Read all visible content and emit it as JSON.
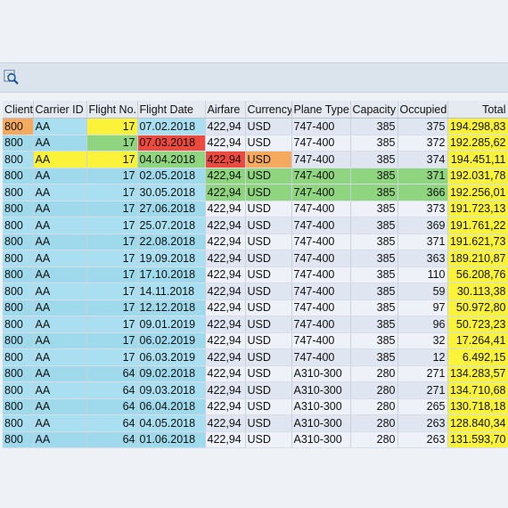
{
  "columns": [
    "Client",
    "Carrier ID",
    "Flight No.",
    "Flight Date",
    "Airfare",
    "Currency",
    "Plane Type",
    "Capacity",
    "Occupied",
    "Total"
  ],
  "rows": [
    {
      "client": "800",
      "carrier": "AA",
      "flight_no": "17",
      "date": "07.02.2018",
      "airfare": "422,94",
      "currency": "USD",
      "plane": "747-400",
      "capacity": "385",
      "occupied": "375",
      "total": "194.298,83"
    },
    {
      "client": "800",
      "carrier": "AA",
      "flight_no": "17",
      "date": "07.03.2018",
      "airfare": "422,94",
      "currency": "USD",
      "plane": "747-400",
      "capacity": "385",
      "occupied": "372",
      "total": "192.285,62"
    },
    {
      "client": "800",
      "carrier": "AA",
      "flight_no": "17",
      "date": "04.04.2018",
      "airfare": "422,94",
      "currency": "USD",
      "plane": "747-400",
      "capacity": "385",
      "occupied": "374",
      "total": "194.451,11"
    },
    {
      "client": "800",
      "carrier": "AA",
      "flight_no": "17",
      "date": "02.05.2018",
      "airfare": "422,94",
      "currency": "USD",
      "plane": "747-400",
      "capacity": "385",
      "occupied": "371",
      "total": "192.031,78"
    },
    {
      "client": "800",
      "carrier": "AA",
      "flight_no": "17",
      "date": "30.05.2018",
      "airfare": "422,94",
      "currency": "USD",
      "plane": "747-400",
      "capacity": "385",
      "occupied": "366",
      "total": "192.256,01"
    },
    {
      "client": "800",
      "carrier": "AA",
      "flight_no": "17",
      "date": "27.06.2018",
      "airfare": "422,94",
      "currency": "USD",
      "plane": "747-400",
      "capacity": "385",
      "occupied": "373",
      "total": "191.723,13"
    },
    {
      "client": "800",
      "carrier": "AA",
      "flight_no": "17",
      "date": "25.07.2018",
      "airfare": "422,94",
      "currency": "USD",
      "plane": "747-400",
      "capacity": "385",
      "occupied": "369",
      "total": "191.761,22"
    },
    {
      "client": "800",
      "carrier": "AA",
      "flight_no": "17",
      "date": "22.08.2018",
      "airfare": "422,94",
      "currency": "USD",
      "plane": "747-400",
      "capacity": "385",
      "occupied": "371",
      "total": "191.621,73"
    },
    {
      "client": "800",
      "carrier": "AA",
      "flight_no": "17",
      "date": "19.09.2018",
      "airfare": "422,94",
      "currency": "USD",
      "plane": "747-400",
      "capacity": "385",
      "occupied": "363",
      "total": "189.210,87"
    },
    {
      "client": "800",
      "carrier": "AA",
      "flight_no": "17",
      "date": "17.10.2018",
      "airfare": "422,94",
      "currency": "USD",
      "plane": "747-400",
      "capacity": "385",
      "occupied": "110",
      "total": "56.208,76"
    },
    {
      "client": "800",
      "carrier": "AA",
      "flight_no": "17",
      "date": "14.11.2018",
      "airfare": "422,94",
      "currency": "USD",
      "plane": "747-400",
      "capacity": "385",
      "occupied": "59",
      "total": "30.113,38"
    },
    {
      "client": "800",
      "carrier": "AA",
      "flight_no": "17",
      "date": "12.12.2018",
      "airfare": "422,94",
      "currency": "USD",
      "plane": "747-400",
      "capacity": "385",
      "occupied": "97",
      "total": "50.972,80"
    },
    {
      "client": "800",
      "carrier": "AA",
      "flight_no": "17",
      "date": "09.01.2019",
      "airfare": "422,94",
      "currency": "USD",
      "plane": "747-400",
      "capacity": "385",
      "occupied": "96",
      "total": "50.723,23"
    },
    {
      "client": "800",
      "carrier": "AA",
      "flight_no": "17",
      "date": "06.02.2019",
      "airfare": "422,94",
      "currency": "USD",
      "plane": "747-400",
      "capacity": "385",
      "occupied": "32",
      "total": "17.264,41"
    },
    {
      "client": "800",
      "carrier": "AA",
      "flight_no": "17",
      "date": "06.03.2019",
      "airfare": "422,94",
      "currency": "USD",
      "plane": "747-400",
      "capacity": "385",
      "occupied": "12",
      "total": "6.492,15"
    },
    {
      "client": "800",
      "carrier": "AA",
      "flight_no": "64",
      "date": "09.02.2018",
      "airfare": "422,94",
      "currency": "USD",
      "plane": "A310-300",
      "capacity": "280",
      "occupied": "271",
      "total": "134.283,57"
    },
    {
      "client": "800",
      "carrier": "AA",
      "flight_no": "64",
      "date": "09.03.2018",
      "airfare": "422,94",
      "currency": "USD",
      "plane": "A310-300",
      "capacity": "280",
      "occupied": "271",
      "total": "134.710,68"
    },
    {
      "client": "800",
      "carrier": "AA",
      "flight_no": "64",
      "date": "06.04.2018",
      "airfare": "422,94",
      "currency": "USD",
      "plane": "A310-300",
      "capacity": "280",
      "occupied": "265",
      "total": "130.718,18"
    },
    {
      "client": "800",
      "carrier": "AA",
      "flight_no": "64",
      "date": "04.05.2018",
      "airfare": "422,94",
      "currency": "USD",
      "plane": "A310-300",
      "capacity": "280",
      "occupied": "263",
      "total": "128.840,34"
    },
    {
      "client": "800",
      "carrier": "AA",
      "flight_no": "64",
      "date": "01.06.2018",
      "airfare": "422,94",
      "currency": "USD",
      "plane": "A310-300",
      "capacity": "280",
      "occupied": "263",
      "total": "131.593,70"
    }
  ],
  "cell_highlights": [
    {
      "row": 0,
      "col": "client",
      "color": "#f5a95e"
    },
    {
      "row": 0,
      "col": "flight_no",
      "color": "#fbf23a"
    },
    {
      "row": 1,
      "col": "flight_no",
      "color": "#8fd47e"
    },
    {
      "row": 1,
      "col": "date",
      "color": "#ed4a3f"
    },
    {
      "row": 2,
      "col": "carrier",
      "color": "#fbf23a"
    },
    {
      "row": 2,
      "col": "flight_no",
      "color": "#fbf23a"
    },
    {
      "row": 2,
      "col": "date",
      "color": "#8fd47e"
    },
    {
      "row": 2,
      "col": "airfare",
      "color": "#ed4a3f"
    },
    {
      "row": 2,
      "col": "currency",
      "color": "#f5a95e"
    },
    {
      "row": 3,
      "col": "airfare",
      "color": "#8fd47e"
    },
    {
      "row": 3,
      "col": "currency",
      "color": "#8fd47e"
    },
    {
      "row": 3,
      "col": "plane",
      "color": "#8fd47e"
    },
    {
      "row": 3,
      "col": "capacity",
      "color": "#8fd47e"
    },
    {
      "row": 3,
      "col": "occupied",
      "color": "#8fd47e"
    },
    {
      "row": 4,
      "col": "airfare",
      "color": "#8fd47e"
    },
    {
      "row": 4,
      "col": "currency",
      "color": "#8fd47e"
    },
    {
      "row": 4,
      "col": "plane",
      "color": "#8fd47e"
    },
    {
      "row": 4,
      "col": "capacity",
      "color": "#8fd47e"
    },
    {
      "row": 4,
      "col": "occupied",
      "color": "#8fd47e"
    }
  ],
  "toolbar": {
    "icon": "search-detail-icon"
  },
  "colors": {
    "total_column": "#fbf23a",
    "key_column": "#a9dff0",
    "row_bg": "#dfe6f1"
  }
}
